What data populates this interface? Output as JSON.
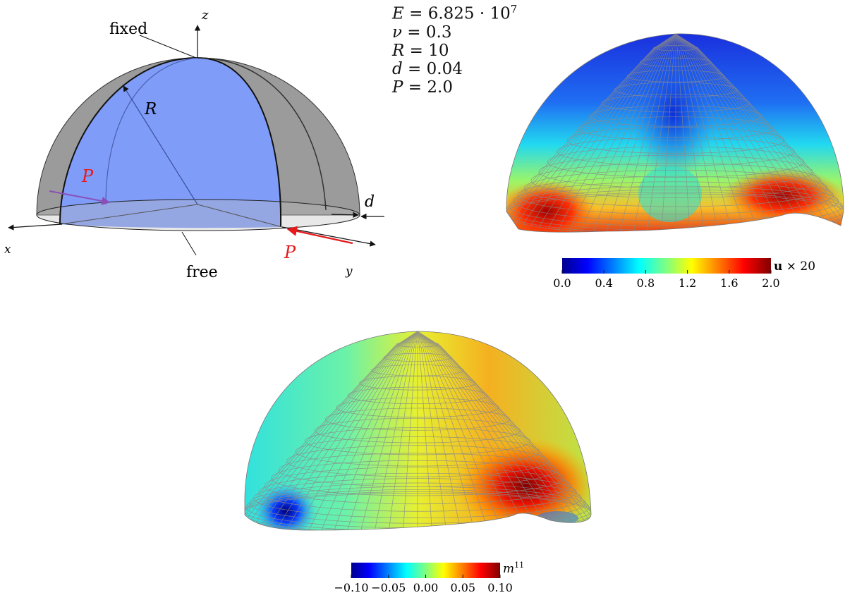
{
  "parameters": [
    {
      "symbol": "E",
      "value": "6.825 · 10",
      "exponent": "7"
    },
    {
      "symbol": "ν",
      "value": "0.3"
    },
    {
      "symbol": "R",
      "value": "10"
    },
    {
      "symbol": "d",
      "value": "0.04"
    },
    {
      "symbol": "P",
      "value": "2.0"
    }
  ],
  "geometry": {
    "axis_x": "x",
    "axis_y": "y",
    "axis_z": "z",
    "label_fixed": "fixed",
    "label_free": "free",
    "label_R": "R",
    "label_d": "d",
    "label_P_left": "P",
    "label_P_right": "P"
  },
  "displacement_plot": {
    "colorbar_label_bold": "u",
    "colorbar_label_rest": " × 20",
    "ticks": [
      "0.0",
      "0.4",
      "0.8",
      "1.2",
      "1.6",
      "2.0"
    ]
  },
  "moment_plot": {
    "colorbar_label": "m",
    "colorbar_label_sup": "11",
    "ticks": [
      "−0.10",
      "−0.05",
      "0.00",
      "0.05",
      "0.10"
    ]
  },
  "colors": {
    "shell_gray": "#9b9b9b",
    "shell_blue": "#7f9cf8",
    "force_red": "#e41a1c",
    "force_purple": "#8a4fb8"
  }
}
